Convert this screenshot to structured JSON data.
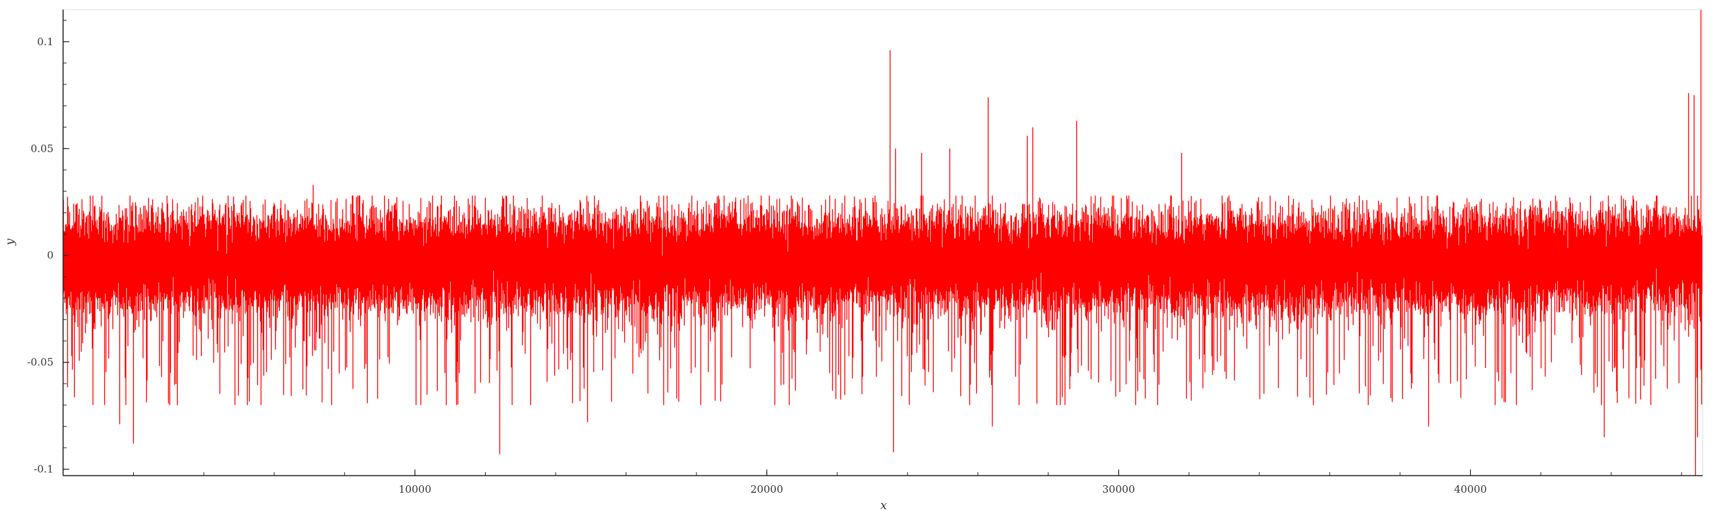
{
  "chart_data": {
    "type": "line",
    "title": "",
    "xlabel": "x",
    "ylabel": "y",
    "xlim": [
      0,
      46600
    ],
    "ylim": [
      -0.103,
      0.115
    ],
    "x_ticks": [
      10000,
      20000,
      30000,
      40000
    ],
    "x_tick_labels": [
      "10000",
      "20000",
      "30000",
      "40000"
    ],
    "x_minor_step": 2000,
    "y_ticks": [
      -0.1,
      -0.05,
      0,
      0.05,
      0.1
    ],
    "y_tick_labels": [
      "-0.1",
      "-0.05",
      "0",
      "0.05",
      "0.1"
    ],
    "y_minor_step": 0.01,
    "grid": false,
    "legend": "none",
    "series": [
      {
        "color": "#ff0000",
        "n_points": 46600,
        "baseline": -0.003,
        "core_band": [
          -0.03,
          0.018
        ],
        "typical_range": [
          -0.07,
          0.028
        ],
        "spikes": [
          {
            "x": 1600,
            "y": -0.079
          },
          {
            "x": 2000,
            "y": -0.088
          },
          {
            "x": 7100,
            "y": 0.033
          },
          {
            "x": 12400,
            "y": -0.093
          },
          {
            "x": 14900,
            "y": -0.078
          },
          {
            "x": 23500,
            "y": 0.096
          },
          {
            "x": 23600,
            "y": -0.092
          },
          {
            "x": 23650,
            "y": 0.05
          },
          {
            "x": 24400,
            "y": 0.048
          },
          {
            "x": 25200,
            "y": 0.05
          },
          {
            "x": 26300,
            "y": 0.074
          },
          {
            "x": 26400,
            "y": -0.08
          },
          {
            "x": 27400,
            "y": 0.056
          },
          {
            "x": 27550,
            "y": 0.06
          },
          {
            "x": 28800,
            "y": 0.063
          },
          {
            "x": 31800,
            "y": 0.048
          },
          {
            "x": 38800,
            "y": -0.08
          },
          {
            "x": 43800,
            "y": -0.085
          },
          {
            "x": 46200,
            "y": 0.076
          },
          {
            "x": 46350,
            "y": 0.075
          },
          {
            "x": 46400,
            "y": -0.103
          },
          {
            "x": 46450,
            "y": -0.085
          },
          {
            "x": 46550,
            "y": 0.115
          }
        ]
      }
    ]
  }
}
